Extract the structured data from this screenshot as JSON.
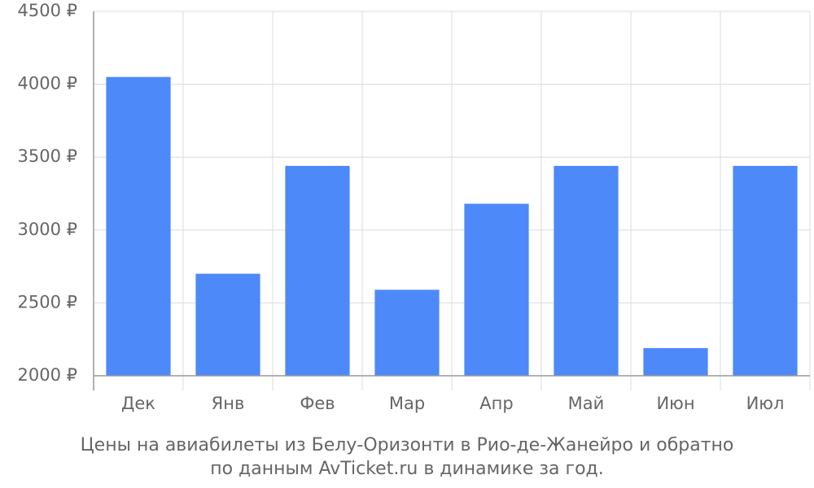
{
  "chart_data": {
    "type": "bar",
    "title": [
      "Цены на авиабилеты из Белу-Оризонти в Рио-де-Жанейро и обратно",
      "по данным AvTicket.ru в динамике за год."
    ],
    "categories": [
      "Дек",
      "Янв",
      "Фев",
      "Мар",
      "Апр",
      "Май",
      "Июн",
      "Июл"
    ],
    "values": [
      4050,
      2700,
      3440,
      2590,
      3180,
      3440,
      2190,
      3440
    ],
    "color": "#4e89fa",
    "ylim": [
      2000,
      4500
    ],
    "yticks": [
      {
        "value": 2000,
        "label": "2000 ₽"
      },
      {
        "value": 2500,
        "label": "2500 ₽"
      },
      {
        "value": 3000,
        "label": "3000 ₽"
      },
      {
        "value": 3500,
        "label": "3500 ₽"
      },
      {
        "value": 4000,
        "label": "4000 ₽"
      },
      {
        "value": 4500,
        "label": "4500 ₽"
      }
    ],
    "grid": true
  }
}
